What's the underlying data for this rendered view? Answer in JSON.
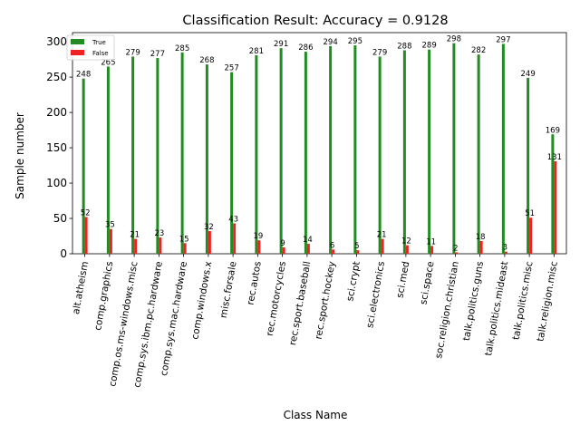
{
  "chart_data": {
    "type": "bar",
    "title": "Classification Result: Accuracy = 0.9128",
    "xlabel": "Class Name",
    "ylabel": "Sample number",
    "ylim": [
      0,
      313
    ],
    "yticks": [
      0,
      50,
      100,
      150,
      200,
      250,
      300
    ],
    "grid": false,
    "legend_position": "top-left",
    "categories": [
      "alt.atheism",
      "comp.graphics",
      "comp.os.ms-windows.misc",
      "comp.sys.ibm.pc.hardware",
      "comp.sys.mac.hardware",
      "comp.windows.x",
      "misc.forsale",
      "rec.autos",
      "rec.motorcycles",
      "rec.sport.baseball",
      "rec.sport.hockey",
      "sci.crypt",
      "sci.electronics",
      "sci.med",
      "sci.space",
      "soc.religion.christian",
      "talk.politics.guns",
      "talk.politics.mideast",
      "talk.politics.misc",
      "talk.religion.misc"
    ],
    "series": [
      {
        "name": "True",
        "color": "#228b22",
        "values": [
          248,
          265,
          279,
          277,
          285,
          268,
          257,
          281,
          291,
          286,
          294,
          295,
          279,
          288,
          289,
          298,
          282,
          297,
          249,
          169
        ]
      },
      {
        "name": "False",
        "color": "#ee2222",
        "values": [
          52,
          35,
          21,
          23,
          15,
          32,
          43,
          19,
          9,
          14,
          6,
          5,
          21,
          12,
          11,
          2,
          18,
          3,
          51,
          131
        ]
      }
    ]
  }
}
